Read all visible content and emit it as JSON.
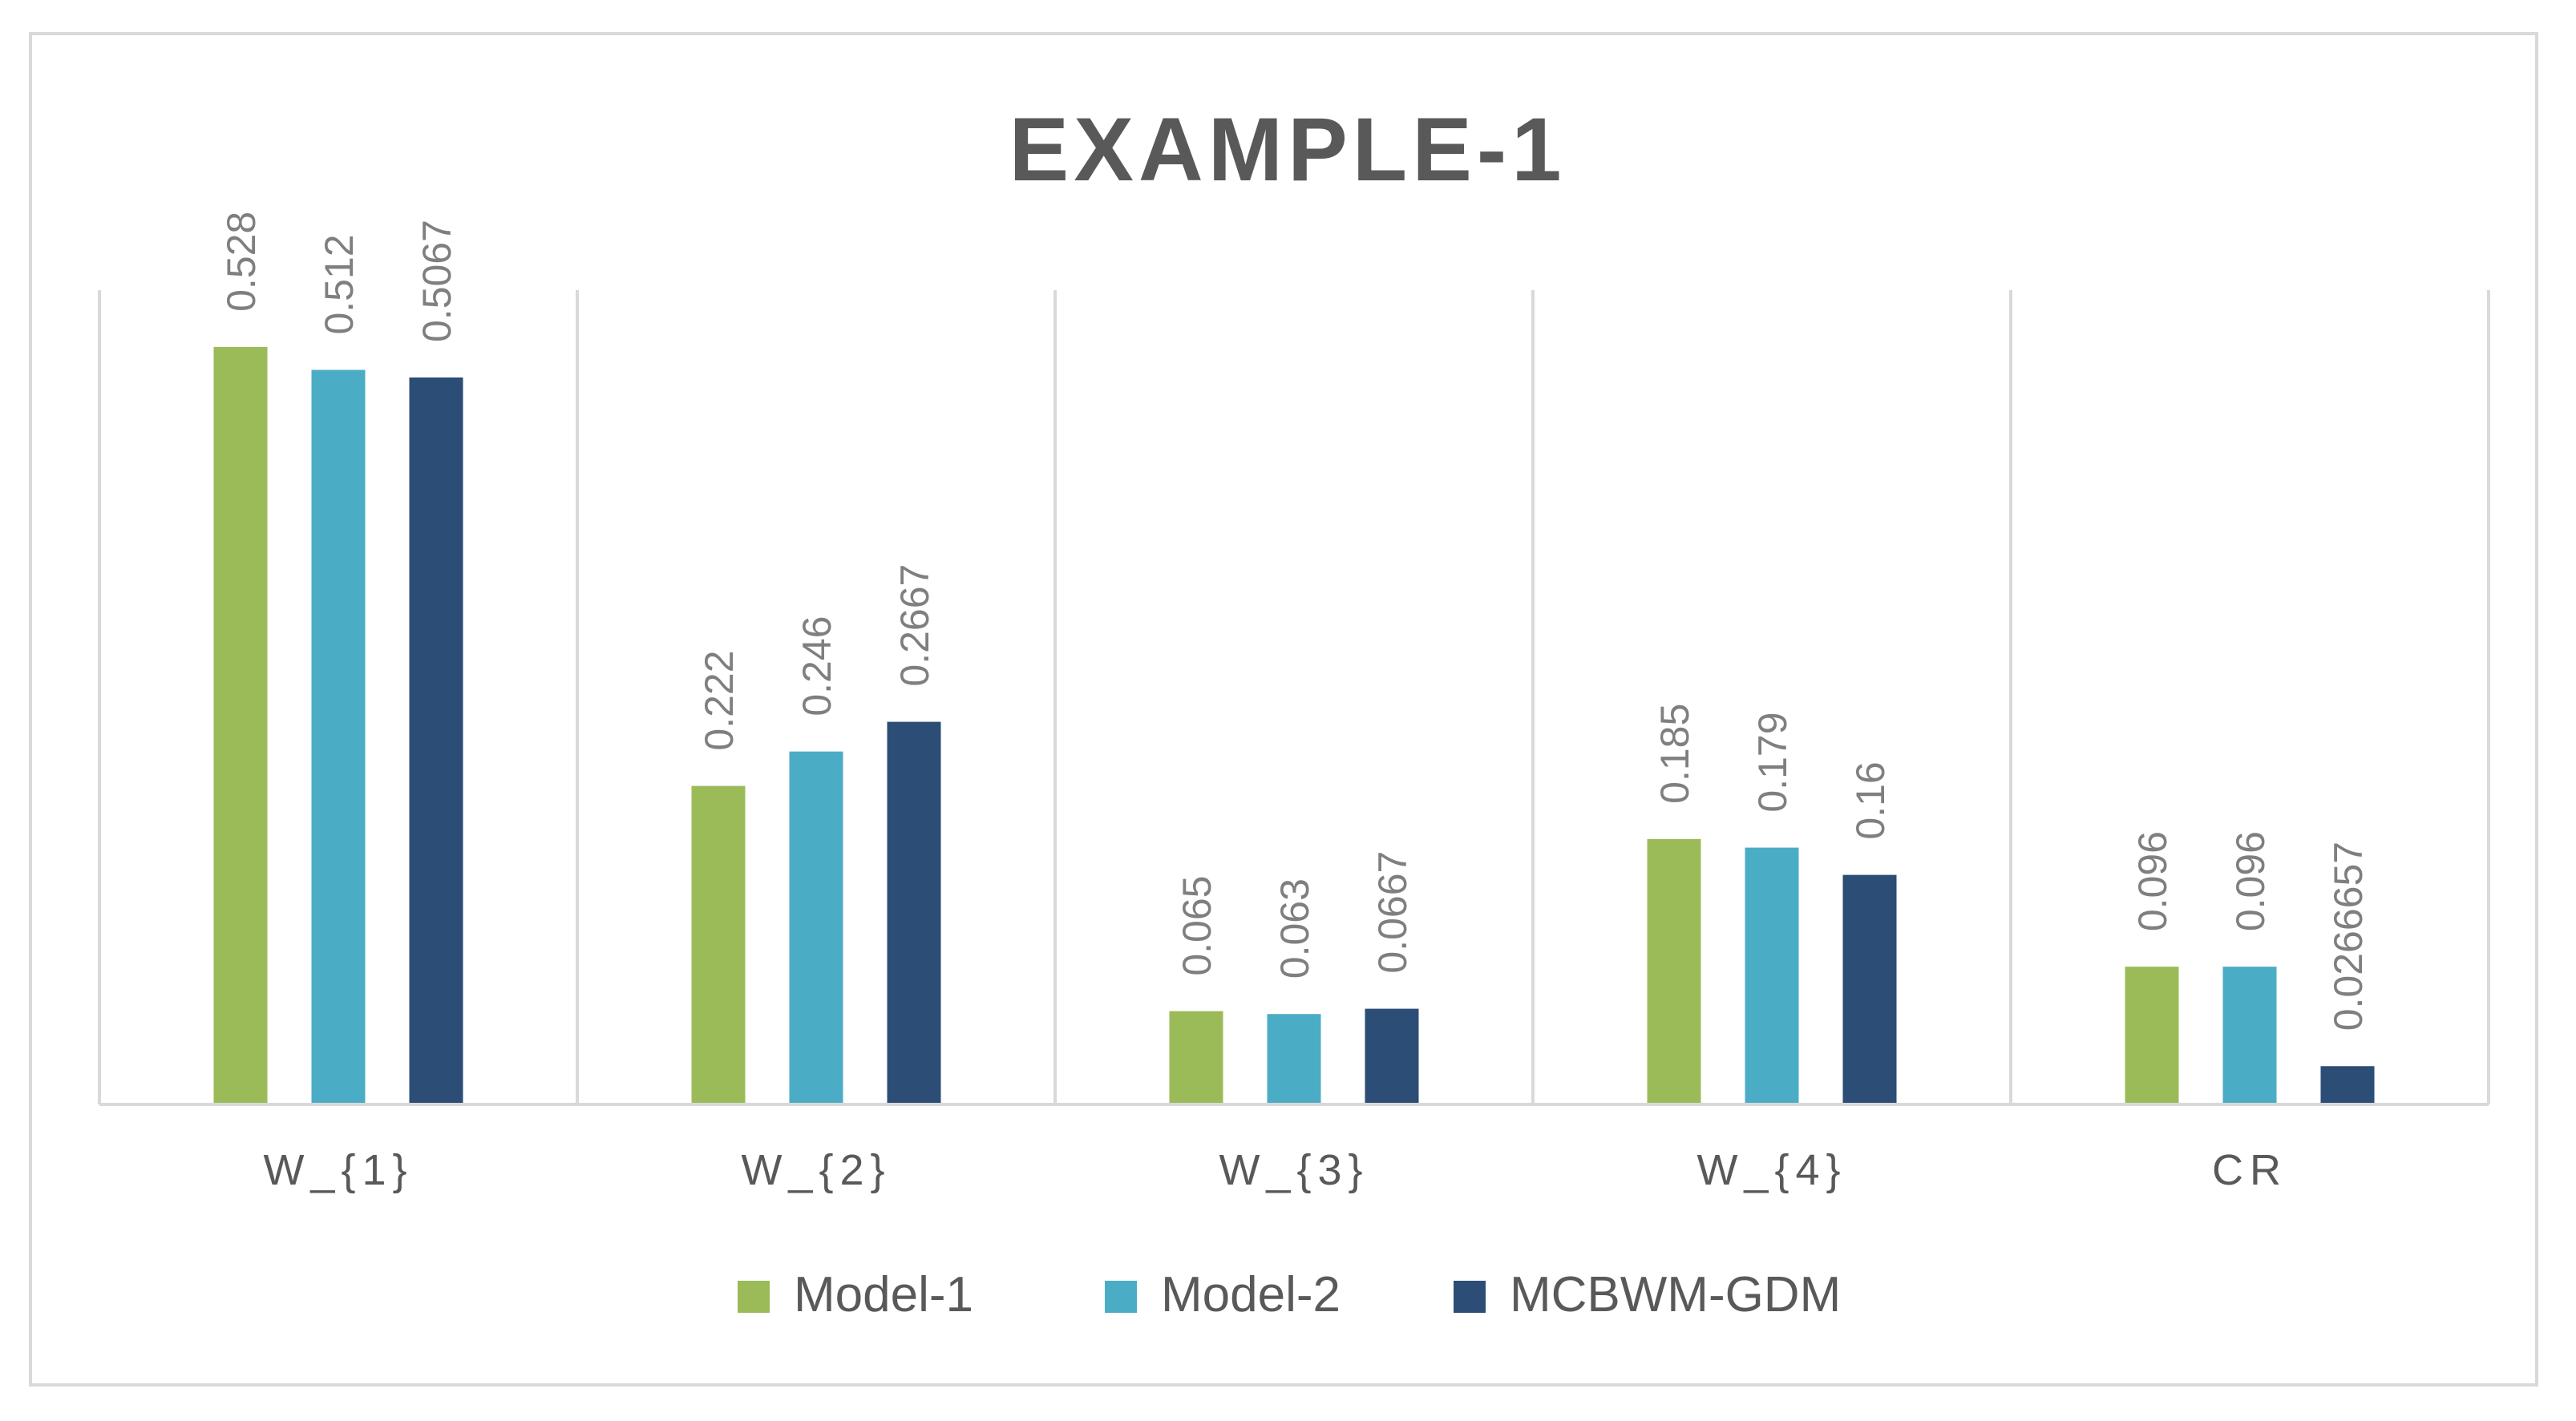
{
  "chart_data": {
    "type": "bar",
    "title": "EXAMPLE-1",
    "xlabel": "",
    "ylabel": "",
    "categories": [
      "W_{1}",
      "W_{2}",
      "W_{3}",
      "W_{4}",
      "CR"
    ],
    "series": [
      {
        "name": "Model-1",
        "color": "#9bbb59",
        "values": [
          0.528,
          0.222,
          0.065,
          0.185,
          0.096
        ],
        "labels": [
          "0.528",
          "0.222",
          "0.065",
          "0.185",
          "0.096"
        ]
      },
      {
        "name": "Model-2",
        "color": "#4bacc6",
        "values": [
          0.512,
          0.246,
          0.063,
          0.179,
          0.096
        ],
        "labels": [
          "0.512",
          "0.246",
          "0.063",
          "0.179",
          "0.096"
        ]
      },
      {
        "name": "MCBWM-GDM",
        "color": "#2c4d75",
        "values": [
          0.5067,
          0.2667,
          0.0667,
          0.16,
          0.0266657
        ],
        "labels": [
          "0.5067",
          "0.2667",
          "0.0667",
          "0.16",
          "0.0266657"
        ]
      }
    ],
    "ylim": [
      0,
      0.6
    ],
    "grid": "vertical separators between categories",
    "legend_position": "bottom",
    "value_axis_visible": false
  }
}
